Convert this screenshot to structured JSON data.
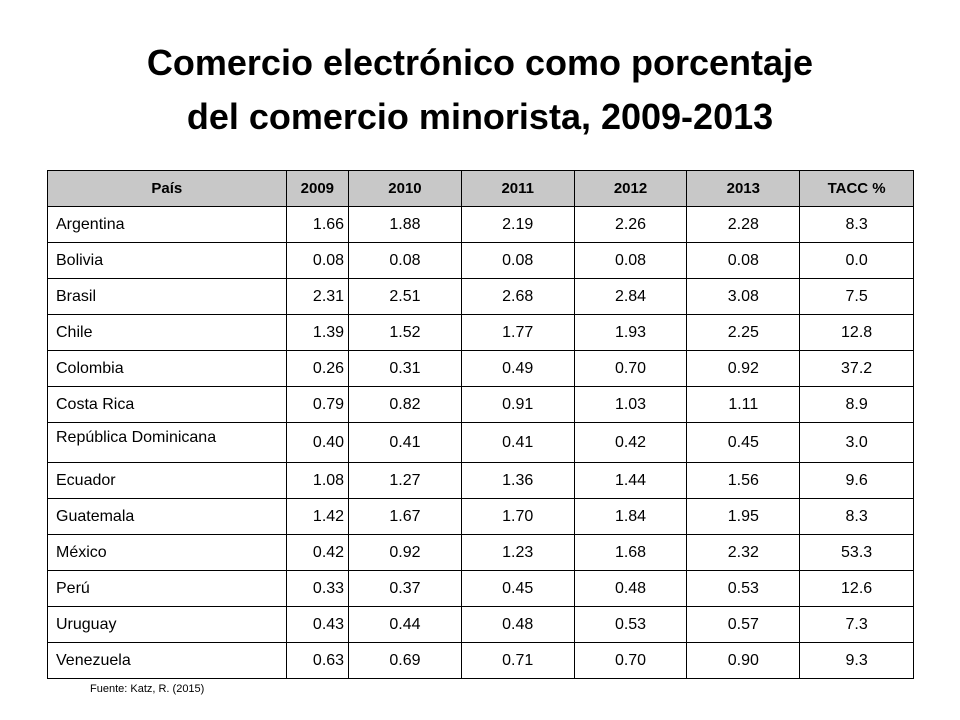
{
  "title": {
    "line1": "Comercio electrónico como porcentaje",
    "line2": "del comercio minorista, 2009-2013"
  },
  "table": {
    "headers": [
      "País",
      "2009",
      "2010",
      "2011",
      "2012",
      "2013",
      "TACC %"
    ],
    "rows": [
      [
        "Argentina",
        "1.66",
        "1.88",
        "2.19",
        "2.26",
        "2.28",
        "8.3"
      ],
      [
        "Bolivia",
        "0.08",
        "0.08",
        "0.08",
        "0.08",
        "0.08",
        "0.0"
      ],
      [
        "Brasil",
        "2.31",
        "2.51",
        "2.68",
        "2.84",
        "3.08",
        "7.5"
      ],
      [
        "Chile",
        "1.39",
        "1.52",
        "1.77",
        "1.93",
        "2.25",
        "12.8"
      ],
      [
        "Colombia",
        "0.26",
        "0.31",
        "0.49",
        "0.70",
        "0.92",
        "37.2"
      ],
      [
        "Costa Rica",
        "0.79",
        "0.82",
        "0.91",
        "1.03",
        "1.11",
        "8.9"
      ],
      [
        "República Dominicana",
        "0.40",
        "0.41",
        "0.41",
        "0.42",
        "0.45",
        "3.0"
      ],
      [
        "Ecuador",
        "1.08",
        "1.27",
        "1.36",
        "1.44",
        "1.56",
        "9.6"
      ],
      [
        "Guatemala",
        "1.42",
        "1.67",
        "1.70",
        "1.84",
        "1.95",
        "8.3"
      ],
      [
        "México",
        "0.42",
        "0.92",
        "1.23",
        "1.68",
        "2.32",
        "53.3"
      ],
      [
        "Perú",
        "0.33",
        "0.37",
        "0.45",
        "0.48",
        "0.53",
        "12.6"
      ],
      [
        "Uruguay",
        "0.43",
        "0.44",
        "0.48",
        "0.53",
        "0.57",
        "7.3"
      ],
      [
        "Venezuela",
        "0.63",
        "0.69",
        "0.71",
        "0.70",
        "0.90",
        "9.3"
      ]
    ]
  },
  "source": "Fuente: Katz, R. (2015)"
}
